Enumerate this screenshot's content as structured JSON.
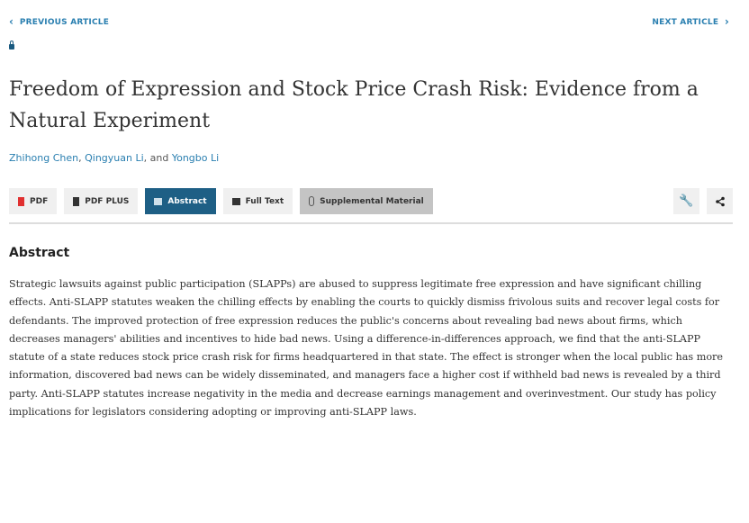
{
  "nav": {
    "previous": "PREVIOUS ARTICLE",
    "next": "NEXT ARTICLE"
  },
  "article": {
    "title": "Freedom of Expression and Stock Price Crash Risk: Evidence from a Natural Experiment",
    "authors": [
      "Zhihong Chen",
      "Qingyuan Li",
      "Yongbo Li"
    ],
    "author_sep1": ", ",
    "author_sep2": ", and "
  },
  "toolbar": {
    "pdf": "PDF",
    "pdf_plus": "PDF PLUS",
    "abstract": "Abstract",
    "full_text": "Full Text",
    "supplemental": "Supplemental Material"
  },
  "colors": {
    "accent": "#2a7fb0",
    "active_button": "#1e5f85",
    "pdf_icon": "#e03030"
  },
  "abstract": {
    "heading": "Abstract",
    "text": "Strategic lawsuits against public participation (SLAPPs) are abused to suppress legitimate free expression and have significant chilling effects. Anti-SLAPP statutes weaken the chilling effects by enabling the courts to quickly dismiss frivolous suits and recover legal costs for defendants. The improved protection of free expression reduces the public's concerns about revealing bad news about firms, which decreases managers' abilities and incentives to hide bad news. Using a difference-in-differences approach, we find that the anti-SLAPP statute of a state reduces stock price crash risk for firms headquartered in that state. The effect is stronger when the local public has more information, discovered bad news can be widely disseminated, and managers face a higher cost if withheld bad news is revealed by a third party. Anti-SLAPP statutes increase negativity in the media and decrease earnings management and overinvestment. Our study has policy implications for legislators considering adopting or improving anti-SLAPP laws."
  }
}
